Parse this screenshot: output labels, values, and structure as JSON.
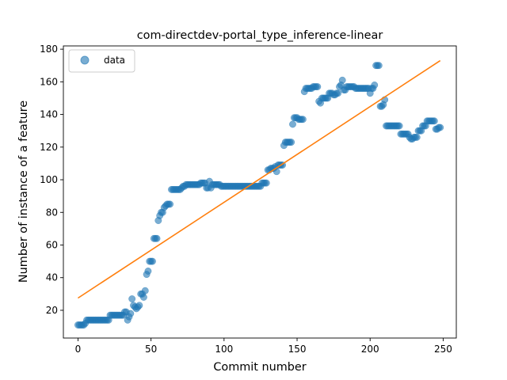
{
  "chart_data": {
    "type": "scatter",
    "title": "com-directdev-portal_type_inference-linear",
    "xlabel": "Commit number",
    "ylabel": "Number of instance of a feature",
    "xlim": [
      -10,
      259
    ],
    "ylim": [
      3,
      182
    ],
    "xticks": [
      0,
      50,
      100,
      150,
      200,
      250
    ],
    "yticks": [
      20,
      40,
      60,
      80,
      100,
      120,
      140,
      160,
      180
    ],
    "grid": false,
    "legend": {
      "position": "top-left",
      "entries": [
        "data"
      ]
    },
    "colors": {
      "data": "#1f77b4",
      "fit": "#ff7f0e"
    },
    "series": [
      {
        "name": "data",
        "kind": "scatter",
        "points": [
          [
            0,
            11
          ],
          [
            1,
            11
          ],
          [
            2,
            11
          ],
          [
            3,
            11
          ],
          [
            4,
            11
          ],
          [
            5,
            12
          ],
          [
            6,
            14
          ],
          [
            7,
            14
          ],
          [
            8,
            14
          ],
          [
            9,
            14
          ],
          [
            10,
            14
          ],
          [
            11,
            14
          ],
          [
            12,
            14
          ],
          [
            13,
            14
          ],
          [
            14,
            14
          ],
          [
            15,
            14
          ],
          [
            16,
            14
          ],
          [
            17,
            14
          ],
          [
            18,
            14
          ],
          [
            19,
            14
          ],
          [
            20,
            14
          ],
          [
            21,
            14
          ],
          [
            22,
            17
          ],
          [
            23,
            17
          ],
          [
            24,
            17
          ],
          [
            25,
            17
          ],
          [
            26,
            17
          ],
          [
            27,
            17
          ],
          [
            28,
            17
          ],
          [
            29,
            17
          ],
          [
            30,
            17
          ],
          [
            31,
            17
          ],
          [
            32,
            19
          ],
          [
            33,
            19
          ],
          [
            34,
            14
          ],
          [
            35,
            16
          ],
          [
            36,
            18
          ],
          [
            37,
            27
          ],
          [
            38,
            23
          ],
          [
            39,
            22
          ],
          [
            40,
            21
          ],
          [
            41,
            22
          ],
          [
            42,
            23
          ],
          [
            43,
            30
          ],
          [
            44,
            30
          ],
          [
            45,
            28
          ],
          [
            46,
            32
          ],
          [
            47,
            42
          ],
          [
            48,
            44
          ],
          [
            49,
            50
          ],
          [
            50,
            50
          ],
          [
            51,
            50
          ],
          [
            52,
            64
          ],
          [
            53,
            64
          ],
          [
            54,
            64
          ],
          [
            55,
            75
          ],
          [
            56,
            78
          ],
          [
            57,
            80
          ],
          [
            58,
            80
          ],
          [
            59,
            83
          ],
          [
            60,
            84
          ],
          [
            61,
            85
          ],
          [
            62,
            85
          ],
          [
            63,
            85
          ],
          [
            64,
            94
          ],
          [
            65,
            94
          ],
          [
            66,
            94
          ],
          [
            67,
            94
          ],
          [
            68,
            94
          ],
          [
            69,
            94
          ],
          [
            70,
            94
          ],
          [
            71,
            95
          ],
          [
            72,
            96
          ],
          [
            73,
            96
          ],
          [
            74,
            97
          ],
          [
            75,
            97
          ],
          [
            76,
            97
          ],
          [
            77,
            97
          ],
          [
            78,
            97
          ],
          [
            79,
            97
          ],
          [
            80,
            97
          ],
          [
            81,
            97
          ],
          [
            82,
            97
          ],
          [
            83,
            97
          ],
          [
            84,
            98
          ],
          [
            85,
            98
          ],
          [
            86,
            98
          ],
          [
            87,
            98
          ],
          [
            88,
            95
          ],
          [
            89,
            95
          ],
          [
            90,
            99
          ],
          [
            91,
            95
          ],
          [
            92,
            97
          ],
          [
            93,
            97
          ],
          [
            94,
            97
          ],
          [
            95,
            97
          ],
          [
            96,
            97
          ],
          [
            97,
            97
          ],
          [
            98,
            96
          ],
          [
            99,
            96
          ],
          [
            100,
            96
          ],
          [
            101,
            96
          ],
          [
            102,
            96
          ],
          [
            103,
            96
          ],
          [
            104,
            96
          ],
          [
            105,
            96
          ],
          [
            106,
            96
          ],
          [
            107,
            96
          ],
          [
            108,
            96
          ],
          [
            109,
            96
          ],
          [
            110,
            96
          ],
          [
            111,
            96
          ],
          [
            112,
            96
          ],
          [
            113,
            96
          ],
          [
            114,
            96
          ],
          [
            115,
            96
          ],
          [
            116,
            96
          ],
          [
            117,
            96
          ],
          [
            118,
            96
          ],
          [
            119,
            96
          ],
          [
            120,
            96
          ],
          [
            121,
            96
          ],
          [
            122,
            96
          ],
          [
            123,
            96
          ],
          [
            124,
            96
          ],
          [
            125,
            96
          ],
          [
            126,
            98
          ],
          [
            127,
            98
          ],
          [
            128,
            98
          ],
          [
            129,
            98
          ],
          [
            130,
            106
          ],
          [
            131,
            106
          ],
          [
            132,
            107
          ],
          [
            133,
            107
          ],
          [
            134,
            107
          ],
          [
            135,
            108
          ],
          [
            136,
            105
          ],
          [
            137,
            109
          ],
          [
            138,
            109
          ],
          [
            139,
            109
          ],
          [
            140,
            109
          ],
          [
            141,
            121
          ],
          [
            142,
            123
          ],
          [
            143,
            123
          ],
          [
            144,
            123
          ],
          [
            145,
            123
          ],
          [
            146,
            123
          ],
          [
            147,
            134
          ],
          [
            148,
            138
          ],
          [
            149,
            138
          ],
          [
            150,
            138
          ],
          [
            151,
            137
          ],
          [
            152,
            137
          ],
          [
            153,
            137
          ],
          [
            154,
            137
          ],
          [
            155,
            154
          ],
          [
            156,
            156
          ],
          [
            157,
            156
          ],
          [
            158,
            156
          ],
          [
            159,
            156
          ],
          [
            160,
            156
          ],
          [
            161,
            157
          ],
          [
            162,
            157
          ],
          [
            163,
            157
          ],
          [
            164,
            157
          ],
          [
            165,
            148
          ],
          [
            166,
            147
          ],
          [
            167,
            150
          ],
          [
            168,
            150
          ],
          [
            169,
            150
          ],
          [
            170,
            150
          ],
          [
            171,
            150
          ],
          [
            172,
            153
          ],
          [
            173,
            153
          ],
          [
            174,
            153
          ],
          [
            175,
            152
          ],
          [
            176,
            152
          ],
          [
            177,
            153
          ],
          [
            178,
            153
          ],
          [
            179,
            157
          ],
          [
            180,
            158
          ],
          [
            181,
            161
          ],
          [
            182,
            155
          ],
          [
            183,
            155
          ],
          [
            184,
            157
          ],
          [
            185,
            157
          ],
          [
            186,
            157
          ],
          [
            187,
            157
          ],
          [
            188,
            157
          ],
          [
            189,
            157
          ],
          [
            190,
            156
          ],
          [
            191,
            156
          ],
          [
            192,
            156
          ],
          [
            193,
            156
          ],
          [
            194,
            156
          ],
          [
            195,
            156
          ],
          [
            196,
            156
          ],
          [
            197,
            156
          ],
          [
            198,
            156
          ],
          [
            199,
            156
          ],
          [
            200,
            153
          ],
          [
            201,
            156
          ],
          [
            202,
            156
          ],
          [
            203,
            158
          ],
          [
            204,
            170
          ],
          [
            205,
            170
          ],
          [
            206,
            170
          ],
          [
            207,
            145
          ],
          [
            208,
            145
          ],
          [
            209,
            146
          ],
          [
            210,
            149
          ],
          [
            211,
            133
          ],
          [
            212,
            133
          ],
          [
            213,
            133
          ],
          [
            214,
            133
          ],
          [
            215,
            133
          ],
          [
            216,
            133
          ],
          [
            217,
            133
          ],
          [
            218,
            133
          ],
          [
            219,
            133
          ],
          [
            220,
            133
          ],
          [
            221,
            128
          ],
          [
            222,
            128
          ],
          [
            223,
            128
          ],
          [
            224,
            128
          ],
          [
            225,
            128
          ],
          [
            226,
            128
          ],
          [
            227,
            126
          ],
          [
            228,
            125
          ],
          [
            229,
            125
          ],
          [
            230,
            126
          ],
          [
            231,
            126
          ],
          [
            232,
            126
          ],
          [
            233,
            130
          ],
          [
            234,
            130
          ],
          [
            235,
            130
          ],
          [
            236,
            133
          ],
          [
            237,
            133
          ],
          [
            238,
            133
          ],
          [
            239,
            136
          ],
          [
            240,
            136
          ],
          [
            241,
            136
          ],
          [
            242,
            136
          ],
          [
            243,
            136
          ],
          [
            244,
            136
          ],
          [
            245,
            131
          ],
          [
            246,
            131
          ],
          [
            247,
            132
          ],
          [
            248,
            132
          ]
        ]
      },
      {
        "kind": "line",
        "points": [
          [
            0,
            27.5
          ],
          [
            248,
            173
          ]
        ]
      }
    ]
  }
}
